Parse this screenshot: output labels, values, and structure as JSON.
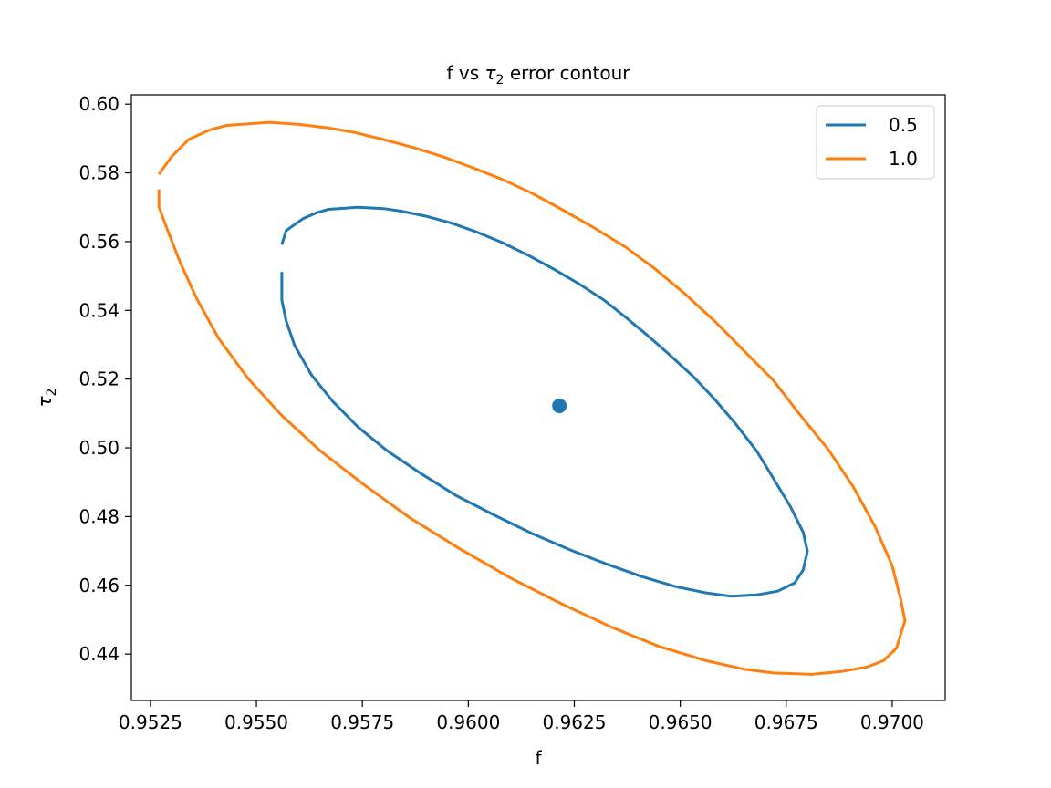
{
  "chart_data": {
    "type": "contour",
    "title_main": "f vs ",
    "title_sym": "τ",
    "title_sub": "2",
    "title_tail": " error contour",
    "xlabel": "f",
    "ylabel_sym": "τ",
    "ylabel_sub": "2",
    "xlim": [
      0.95205,
      0.97125
    ],
    "ylim": [
      0.4265,
      0.6027
    ],
    "xticks": [
      0.9525,
      0.955,
      0.9575,
      0.96,
      0.9625,
      0.965,
      0.9675,
      0.97
    ],
    "xtick_labels": [
      "0.9525",
      "0.9550",
      "0.9575",
      "0.9600",
      "0.9625",
      "0.9650",
      "0.9675",
      "0.9700"
    ],
    "yticks": [
      0.44,
      0.46,
      0.48,
      0.5,
      0.52,
      0.54,
      0.56,
      0.58,
      0.6
    ],
    "ytick_labels": [
      "0.44",
      "0.46",
      "0.48",
      "0.50",
      "0.52",
      "0.54",
      "0.56",
      "0.58",
      "0.60"
    ],
    "legend_position": "top-right",
    "series": [
      {
        "name": "0.5",
        "color": "#1f77b4",
        "points": [
          [
            0.9556,
            0.5591
          ],
          [
            0.9557,
            0.5632
          ],
          [
            0.9561,
            0.5667
          ],
          [
            0.9564,
            0.5683
          ],
          [
            0.9567,
            0.5694
          ],
          [
            0.9574,
            0.57
          ],
          [
            0.958,
            0.5696
          ],
          [
            0.9584,
            0.5689
          ],
          [
            0.959,
            0.5674
          ],
          [
            0.9596,
            0.5654
          ],
          [
            0.9602,
            0.5628
          ],
          [
            0.9608,
            0.5597
          ],
          [
            0.9614,
            0.5561
          ],
          [
            0.962,
            0.5521
          ],
          [
            0.9626,
            0.5478
          ],
          [
            0.9632,
            0.543
          ],
          [
            0.9637,
            0.5381
          ],
          [
            0.9642,
            0.533
          ],
          [
            0.9647,
            0.5276
          ],
          [
            0.9653,
            0.5208
          ],
          [
            0.9658,
            0.5143
          ],
          [
            0.9663,
            0.5071
          ],
          [
            0.9668,
            0.4991
          ],
          [
            0.9672,
            0.4911
          ],
          [
            0.9676,
            0.4829
          ],
          [
            0.9679,
            0.4754
          ],
          [
            0.968,
            0.4699
          ],
          [
            0.9679,
            0.4645
          ],
          [
            0.9677,
            0.4607
          ],
          [
            0.9673,
            0.4583
          ],
          [
            0.9668,
            0.4572
          ],
          [
            0.9662,
            0.4568
          ],
          [
            0.9656,
            0.4578
          ],
          [
            0.9649,
            0.4596
          ],
          [
            0.9641,
            0.4625
          ],
          [
            0.9633,
            0.466
          ],
          [
            0.9624,
            0.4703
          ],
          [
            0.9615,
            0.4751
          ],
          [
            0.9606,
            0.4805
          ],
          [
            0.9597,
            0.4862
          ],
          [
            0.9589,
            0.4924
          ],
          [
            0.9581,
            0.499
          ],
          [
            0.9574,
            0.506
          ],
          [
            0.9568,
            0.5135
          ],
          [
            0.9563,
            0.5212
          ],
          [
            0.9559,
            0.5298
          ],
          [
            0.9557,
            0.537
          ],
          [
            0.9556,
            0.543
          ],
          [
            0.9556,
            0.5472
          ],
          [
            0.9556,
            0.5512
          ]
        ]
      },
      {
        "name": "1.0",
        "color": "#ff7f0e",
        "points": [
          [
            0.9527,
            0.5796
          ],
          [
            0.953,
            0.5847
          ],
          [
            0.9534,
            0.5897
          ],
          [
            0.9539,
            0.5925
          ],
          [
            0.9543,
            0.5938
          ],
          [
            0.9553,
            0.5947
          ],
          [
            0.956,
            0.5941
          ],
          [
            0.9567,
            0.5931
          ],
          [
            0.9573,
            0.5918
          ],
          [
            0.958,
            0.5897
          ],
          [
            0.9587,
            0.5874
          ],
          [
            0.9594,
            0.5847
          ],
          [
            0.9601,
            0.5815
          ],
          [
            0.9608,
            0.5781
          ],
          [
            0.9615,
            0.5741
          ],
          [
            0.9622,
            0.5694
          ],
          [
            0.9629,
            0.5645
          ],
          [
            0.9637,
            0.5585
          ],
          [
            0.9644,
            0.5521
          ],
          [
            0.9651,
            0.5449
          ],
          [
            0.9658,
            0.537
          ],
          [
            0.9665,
            0.5283
          ],
          [
            0.9672,
            0.5196
          ],
          [
            0.9678,
            0.51
          ],
          [
            0.9685,
            0.4994
          ],
          [
            0.9691,
            0.4883
          ],
          [
            0.9696,
            0.477
          ],
          [
            0.97,
            0.4657
          ],
          [
            0.9702,
            0.456
          ],
          [
            0.9703,
            0.4497
          ],
          [
            0.9701,
            0.4417
          ],
          [
            0.9698,
            0.4381
          ],
          [
            0.9694,
            0.4362
          ],
          [
            0.9688,
            0.4349
          ],
          [
            0.9681,
            0.4341
          ],
          [
            0.9672,
            0.4345
          ],
          [
            0.9665,
            0.4356
          ],
          [
            0.9656,
            0.4381
          ],
          [
            0.9645,
            0.4422
          ],
          [
            0.9634,
            0.4477
          ],
          [
            0.9622,
            0.4546
          ],
          [
            0.961,
            0.4621
          ],
          [
            0.9598,
            0.4706
          ],
          [
            0.9586,
            0.4798
          ],
          [
            0.9575,
            0.4896
          ],
          [
            0.9565,
            0.4992
          ],
          [
            0.9556,
            0.5094
          ],
          [
            0.9548,
            0.5202
          ],
          [
            0.9541,
            0.532
          ],
          [
            0.9536,
            0.5432
          ],
          [
            0.9532,
            0.554
          ],
          [
            0.9529,
            0.5634
          ],
          [
            0.9527,
            0.5701
          ],
          [
            0.9527,
            0.5752
          ]
        ]
      }
    ],
    "center_point": {
      "x": 0.96215,
      "y": 0.5122,
      "color": "#1f77b4"
    }
  }
}
